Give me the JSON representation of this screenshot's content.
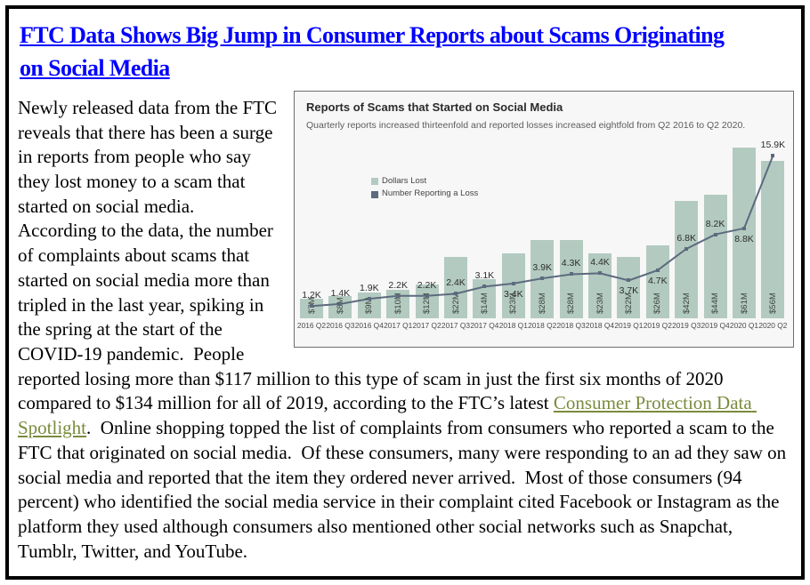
{
  "page": {
    "border_color": "#000000",
    "background": "#ffffff"
  },
  "article": {
    "title_lines": [
      "FTC Data Shows Big Jump in Consumer Reports about Scams Originating",
      "on Social Media"
    ],
    "title_color": "#0000ff",
    "body": {
      "text_before_link": "Newly released data from the FTC reveals that there has been a surge in reports from people who say they lost money to a scam that started on social media.  According to the data, the number of complaints about scams that started on social media more than tripled in the last year, spiking in the spring at the start of the COVID-19 pandemic.  People reported losing more than $117 million to this type of scam in just the first six months of 2020 compared to $134 million for all of 2019, according to the FTC’s latest ",
      "link_text": "Consumer Protection Data Spotlight",
      "link_color": "#7a8b3d",
      "text_after_link": ".  Online shopping topped the list of complaints from consumers who reported a scam to the FTC that originated on social media.  Of these consumers, many were responding to an ad they saw on social media and reported that the item they ordered never arrived.  Most of those consumers (94 percent) who identified the social media service in their complaint cited Facebook or Instagram as the platform they used although consumers also mentioned other social networks such as Snapchat, Tumblr, Twitter, and YouTube."
    }
  },
  "chart_data": {
    "type": "bar",
    "title": "Reports of Scams that Started on Social Media",
    "subtitle": "Quarterly reports increased thirteenfold and reported losses increased eightfold from Q2 2016 to Q2 2020.",
    "categories": [
      "2016 Q2",
      "2016 Q3",
      "2016 Q4",
      "2017 Q1",
      "2017 Q2",
      "2017 Q3",
      "2017 Q4",
      "2018 Q1",
      "2018 Q2",
      "2018 Q3",
      "2018 Q4",
      "2019 Q1",
      "2019 Q2",
      "2019 Q3",
      "2019 Q4",
      "2020 Q1",
      "2020 Q2"
    ],
    "legend_position": "inside-left",
    "grid": false,
    "background": "#f7f7f7",
    "series": [
      {
        "name": "Dollars Lost",
        "type": "bar",
        "unit": "millions USD",
        "color": "#b3cac0",
        "values": [
          7,
          8,
          9,
          10,
          12,
          22,
          14,
          23,
          28,
          28,
          23,
          22,
          26,
          42,
          44,
          61,
          56
        ],
        "labels": [
          "$7M",
          "$8M",
          "$9M",
          "$10M",
          "$12M",
          "$22M",
          "$14M",
          "$23M",
          "$28M",
          "$28M",
          "$23M",
          "$22M",
          "$26M",
          "$42M",
          "$44M",
          "$61M",
          "$56M"
        ]
      },
      {
        "name": "Number Reporting a Loss",
        "type": "line",
        "unit": "thousands of reports",
        "color": "#5c6b7e",
        "values": [
          1.2,
          1.4,
          1.9,
          2.2,
          2.2,
          2.4,
          3.1,
          3.4,
          3.9,
          4.3,
          4.4,
          3.7,
          4.7,
          6.8,
          8.2,
          8.8,
          15.9
        ],
        "labels": [
          "1.2K",
          "1.4K",
          "1.9K",
          "2.2K",
          "2.2K",
          "2.4K",
          "3.1K",
          "3.4K",
          "3.9K",
          "4.3K",
          "4.4K",
          "3.7K",
          "4.7K",
          "6.8K",
          "8.2K",
          "8.8K",
          "15.9K"
        ],
        "label_positions": [
          "above",
          "above",
          "above",
          "above",
          "above",
          "above",
          "above",
          "below",
          "above",
          "above",
          "above",
          "below",
          "below",
          "above",
          "above",
          "below",
          "above"
        ]
      }
    ]
  }
}
